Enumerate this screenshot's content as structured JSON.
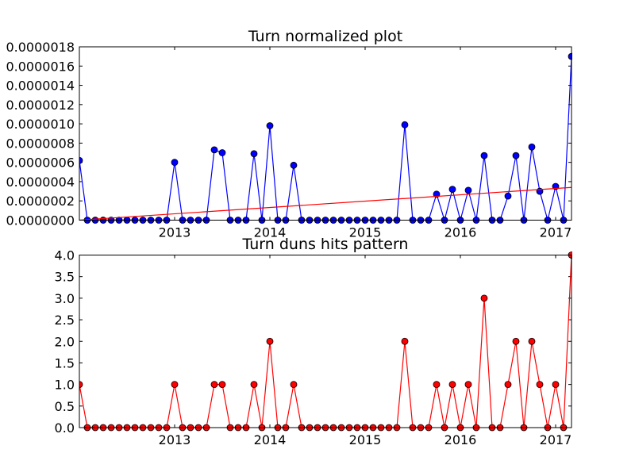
{
  "chart_data": [
    {
      "type": "line",
      "title": "Turn normalized plot",
      "x_tick_labels": [
        "2013",
        "2014",
        "2015",
        "2016",
        "2017"
      ],
      "x_ticks": [
        "2013-01",
        "2014-01",
        "2015-01",
        "2016-01",
        "2017-01"
      ],
      "xlim": [
        "2012-01",
        "2017-03"
      ],
      "ylim": [
        0,
        1.8e-06
      ],
      "y_tick_labels": [
        "0.0000000",
        "0.0000002",
        "0.0000004",
        "0.0000006",
        "0.0000008",
        "0.0000010",
        "0.0000012",
        "0.0000014",
        "0.0000016",
        "0.0000018"
      ],
      "y_ticks": [
        0,
        2e-07,
        4e-07,
        6e-07,
        8e-07,
        1e-06,
        1.2e-06,
        1.4e-06,
        1.6e-06,
        1.8e-06
      ],
      "grid": false,
      "x": [
        "2012-01",
        "2012-02",
        "2012-03",
        "2012-04",
        "2012-05",
        "2012-06",
        "2012-07",
        "2012-08",
        "2012-09",
        "2012-10",
        "2012-11",
        "2012-12",
        "2013-01",
        "2013-02",
        "2013-03",
        "2013-04",
        "2013-05",
        "2013-06",
        "2013-07",
        "2013-08",
        "2013-09",
        "2013-10",
        "2013-11",
        "2013-12",
        "2014-01",
        "2014-02",
        "2014-03",
        "2014-04",
        "2014-05",
        "2014-06",
        "2014-07",
        "2014-08",
        "2014-09",
        "2014-10",
        "2014-11",
        "2014-12",
        "2015-01",
        "2015-02",
        "2015-03",
        "2015-04",
        "2015-05",
        "2015-06",
        "2015-07",
        "2015-08",
        "2015-09",
        "2015-10",
        "2015-11",
        "2015-12",
        "2016-01",
        "2016-02",
        "2016-03",
        "2016-04",
        "2016-05",
        "2016-06",
        "2016-07",
        "2016-08",
        "2016-09",
        "2016-10",
        "2016-11",
        "2016-12",
        "2017-01",
        "2017-02",
        "2017-03"
      ],
      "series": [
        {
          "color": "#0000ff",
          "marker": "circle",
          "values": [
            6.2e-07,
            0,
            0,
            0,
            0,
            0,
            0,
            0,
            0,
            0,
            0,
            0,
            6e-07,
            0,
            0,
            0,
            0,
            7.3e-07,
            7e-07,
            0,
            0,
            0,
            6.9e-07,
            0,
            9.8e-07,
            0,
            0,
            5.7e-07,
            0,
            0,
            0,
            0,
            0,
            0,
            0,
            0,
            0,
            0,
            0,
            0,
            0,
            9.9e-07,
            0,
            0,
            0,
            2.7e-07,
            0,
            3.2e-07,
            0,
            3.1e-07,
            0,
            6.7e-07,
            0,
            0,
            2.5e-07,
            6.7e-07,
            0,
            7.6e-07,
            3e-07,
            0,
            3.5e-07,
            0,
            1.7e-06
          ]
        },
        {
          "color": "#ff0000",
          "marker": "none",
          "style": "trend",
          "x": [
            "2012-01",
            "2017-03"
          ],
          "values": [
            0.0,
            3.4e-07
          ]
        }
      ]
    },
    {
      "type": "line",
      "title": "Turn duns hits pattern",
      "x_tick_labels": [
        "2013",
        "2014",
        "2015",
        "2016",
        "2017"
      ],
      "x_ticks": [
        "2013-01",
        "2014-01",
        "2015-01",
        "2016-01",
        "2017-01"
      ],
      "xlim": [
        "2012-01",
        "2017-03"
      ],
      "ylim": [
        0,
        4.0
      ],
      "y_tick_labels": [
        "0.0",
        "0.5",
        "1.0",
        "1.5",
        "2.0",
        "2.5",
        "3.0",
        "3.5",
        "4.0"
      ],
      "y_ticks": [
        0,
        0.5,
        1.0,
        1.5,
        2.0,
        2.5,
        3.0,
        3.5,
        4.0
      ],
      "grid": false,
      "x": [
        "2012-01",
        "2012-02",
        "2012-03",
        "2012-04",
        "2012-05",
        "2012-06",
        "2012-07",
        "2012-08",
        "2012-09",
        "2012-10",
        "2012-11",
        "2012-12",
        "2013-01",
        "2013-02",
        "2013-03",
        "2013-04",
        "2013-05",
        "2013-06",
        "2013-07",
        "2013-08",
        "2013-09",
        "2013-10",
        "2013-11",
        "2013-12",
        "2014-01",
        "2014-02",
        "2014-03",
        "2014-04",
        "2014-05",
        "2014-06",
        "2014-07",
        "2014-08",
        "2014-09",
        "2014-10",
        "2014-11",
        "2014-12",
        "2015-01",
        "2015-02",
        "2015-03",
        "2015-04",
        "2015-05",
        "2015-06",
        "2015-07",
        "2015-08",
        "2015-09",
        "2015-10",
        "2015-11",
        "2015-12",
        "2016-01",
        "2016-02",
        "2016-03",
        "2016-04",
        "2016-05",
        "2016-06",
        "2016-07",
        "2016-08",
        "2016-09",
        "2016-10",
        "2016-11",
        "2016-12",
        "2017-01",
        "2017-02",
        "2017-03"
      ],
      "series": [
        {
          "color": "#ff0000",
          "marker": "circle",
          "values": [
            1,
            0,
            0,
            0,
            0,
            0,
            0,
            0,
            0,
            0,
            0,
            0,
            1,
            0,
            0,
            0,
            0,
            1,
            1,
            0,
            0,
            0,
            1,
            0,
            2,
            0,
            0,
            1,
            0,
            0,
            0,
            0,
            0,
            0,
            0,
            0,
            0,
            0,
            0,
            0,
            0,
            2,
            0,
            0,
            0,
            1,
            0,
            1,
            0,
            1,
            0,
            3,
            0,
            0,
            1,
            2,
            0,
            2,
            1,
            0,
            1,
            0,
            4
          ]
        }
      ]
    }
  ]
}
